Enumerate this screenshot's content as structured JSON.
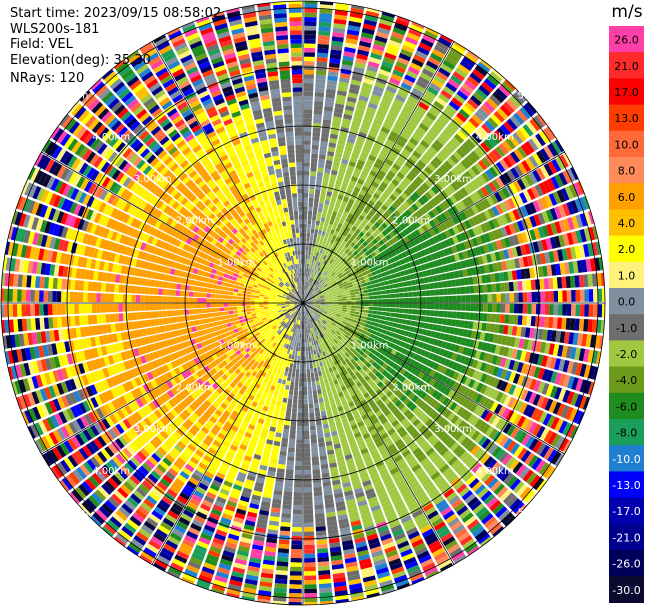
{
  "header": {
    "start_time": "Start time: 2023/09/15 08:58:02",
    "instrument": "WLS200s-181",
    "field": "Field: VEL",
    "elevation": "Elevation(deg): 35.30",
    "nrays": "NRays: 120"
  },
  "chart_data": {
    "type": "heatmap",
    "projection": "polar (PPI)",
    "field": "VEL",
    "nrays": 120,
    "range_ring_labels": [
      "1.00km",
      "2.00km",
      "3.00km",
      "4.00km",
      "5.00km"
    ],
    "spokes": "every 30 degrees",
    "pattern": "positive (approaching: yellow/orange) radial velocity west of radar, negative (green/olive) east of radar within about 2.5 km; noise (random colors) beyond",
    "colorbar": {
      "unit": "m/s",
      "tick_labels": [
        "26.0",
        "21.0",
        "17.0",
        "13.0",
        "10.0",
        "8.0",
        "6.0",
        "4.0",
        "2.0",
        "1.0",
        "0.0",
        "-1.0",
        "-2.0",
        "-4.0",
        "-6.0",
        "-8.0",
        "-10.0",
        "-13.0",
        "-17.0",
        "-21.0",
        "-26.0",
        "-30.0"
      ],
      "colors": [
        "#ff3fa8",
        "#ff2a2a",
        "#ff0000",
        "#ff3d00",
        "#ff6a3a",
        "#ff8a5a",
        "#ff9f00",
        "#ffc000",
        "#ffff00",
        "#fff27a",
        "#8090a0",
        "#6e6e6e",
        "#a0c840",
        "#6c9a1a",
        "#1e8c1e",
        "#1a9e5a",
        "#1f7fd0",
        "#0000ff",
        "#0000b0",
        "#000090",
        "#00005a",
        "#0a0a30"
      ]
    }
  }
}
